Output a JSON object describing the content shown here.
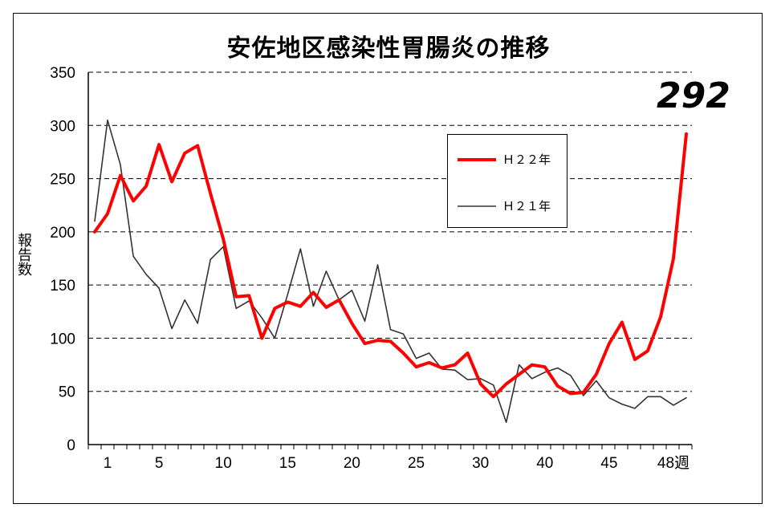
{
  "title": "安佐地区感染性胃腸炎の推移",
  "callout": "292",
  "chart_data": {
    "type": "line",
    "title": "安佐地区感染性胃腸炎の推移",
    "xlabel": "週",
    "ylabel": "報告数",
    "ylim": [
      0,
      350
    ],
    "y_ticks": [
      "0",
      "50",
      "100",
      "150",
      "200",
      "250",
      "300",
      "350"
    ],
    "x_tick_labels": [
      {
        "week": 2,
        "label": "1"
      },
      {
        "week": 6,
        "label": "5"
      },
      {
        "week": 11,
        "label": "10"
      },
      {
        "week": 16,
        "label": "15"
      },
      {
        "week": 21,
        "label": "20"
      },
      {
        "week": 26,
        "label": "25"
      },
      {
        "week": 31,
        "label": "30"
      },
      {
        "week": 36,
        "label": "40"
      },
      {
        "week": 41,
        "label": "45"
      },
      {
        "week": 46,
        "label": "48週"
      }
    ],
    "grid": "horizontal dashed",
    "legend_position": "top-right",
    "series": [
      {
        "name": "Ｈ２２年",
        "color": "#ff0000",
        "values": [
          200,
          217,
          253,
          229,
          243,
          282,
          247,
          274,
          281,
          236,
          193,
          139,
          140,
          100,
          128,
          134,
          130,
          143,
          129,
          136,
          114,
          95,
          98,
          97,
          86,
          73,
          77,
          72,
          75,
          86,
          57,
          45,
          57,
          66,
          75,
          73,
          55,
          48,
          49,
          66,
          95,
          115,
          80,
          88,
          120,
          175,
          292
        ]
      },
      {
        "name": "Ｈ２１年",
        "color": "#333333",
        "values": [
          210,
          305,
          263,
          177,
          160,
          147,
          109,
          136,
          114,
          174,
          186,
          128,
          135,
          119,
          100,
          141,
          184,
          130,
          163,
          136,
          145,
          116,
          169,
          108,
          104,
          81,
          86,
          71,
          70,
          61,
          62,
          56,
          21,
          75,
          62,
          68,
          72,
          65,
          46,
          60,
          44,
          38,
          34,
          45,
          45,
          37,
          44
        ]
      }
    ]
  }
}
